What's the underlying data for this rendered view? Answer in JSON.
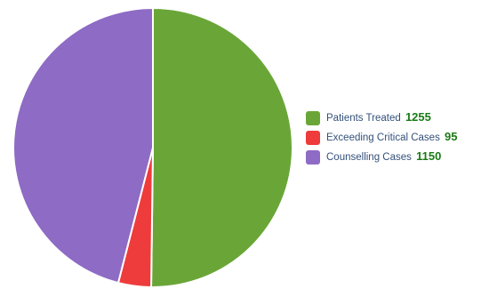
{
  "chart_data": {
    "type": "pie",
    "slices": [
      {
        "label": "Patients Treated",
        "value": 1255,
        "color": "#6aa637"
      },
      {
        "label": "Exceeding Critical Cases",
        "value": 95,
        "color": "#ee3b3b"
      },
      {
        "label": "Counselling Cases",
        "value": 1150,
        "color": "#8e6bc4"
      }
    ],
    "legend_position": "right"
  }
}
